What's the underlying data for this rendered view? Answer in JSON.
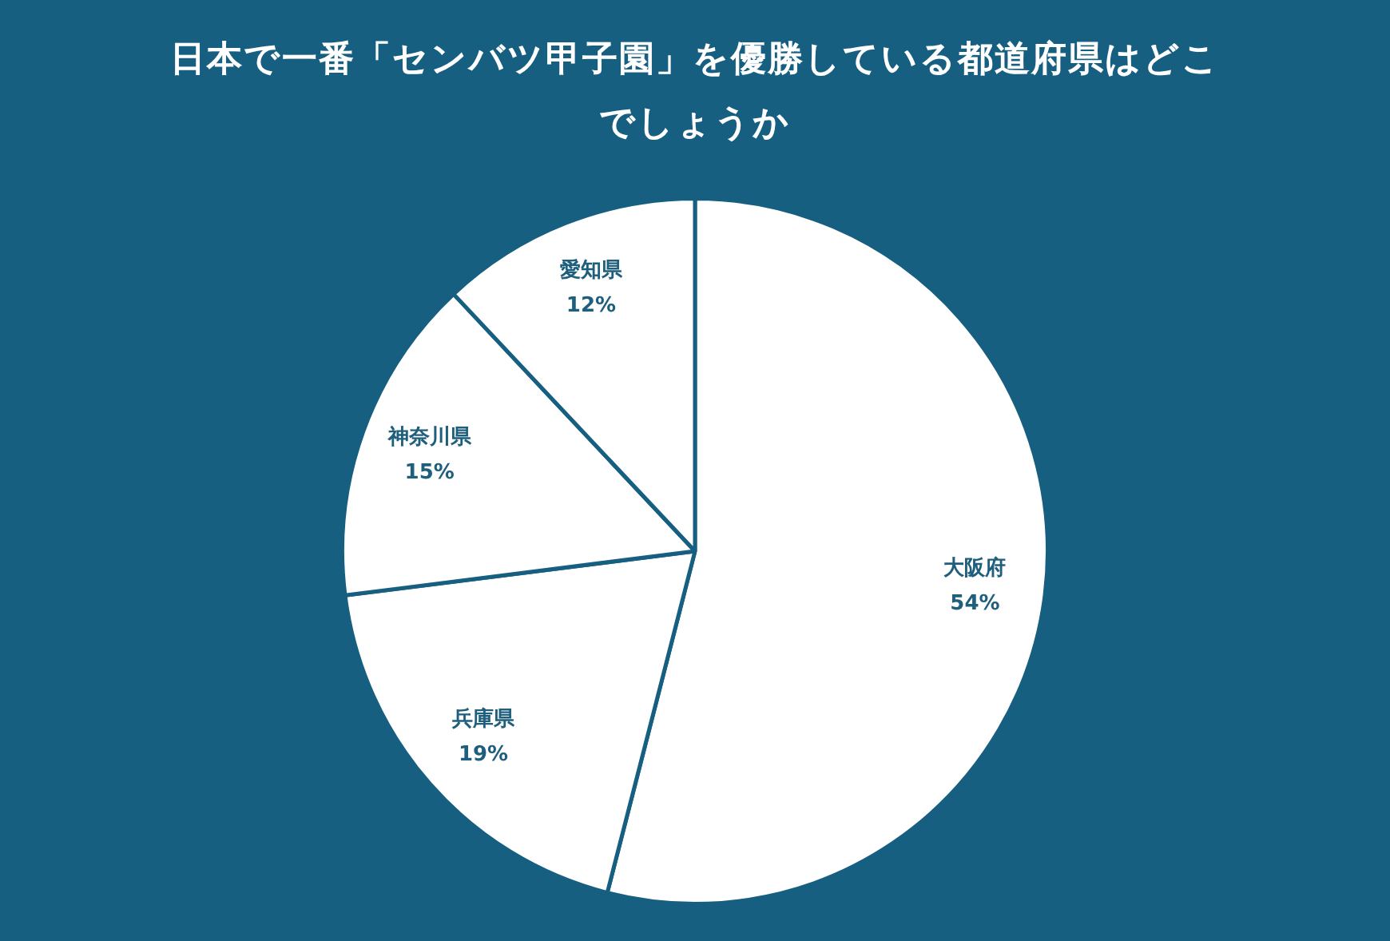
{
  "chart_data": {
    "type": "pie",
    "title": "日本で一番「センバツ甲子園」を優勝している都道府県はどこでしょうか",
    "categories": [
      "大阪府",
      "兵庫県",
      "神奈川県",
      "愛知県"
    ],
    "values": [
      54,
      19,
      15,
      12
    ],
    "value_labels": [
      "54%",
      "19%",
      "15%",
      "12%"
    ],
    "colors": [
      "#ffffff",
      "#ffffff",
      "#ffffff",
      "#ffffff"
    ],
    "legend": false
  }
}
